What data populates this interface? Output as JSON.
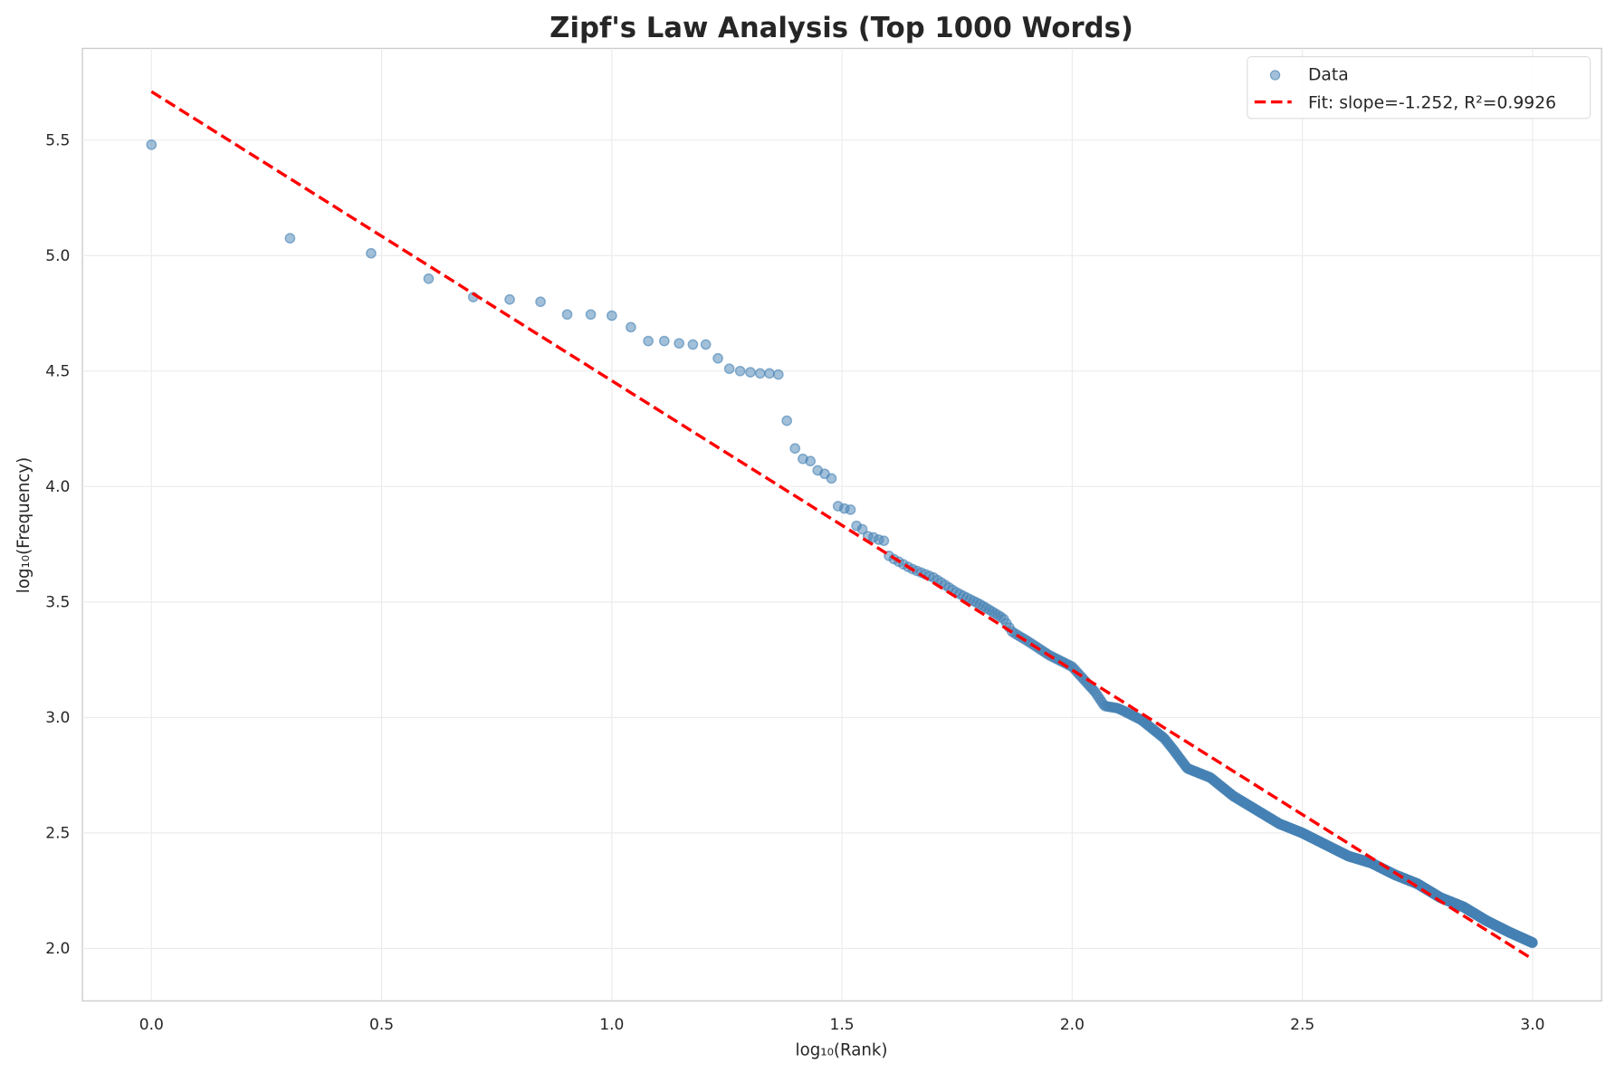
{
  "chart_data": {
    "type": "scatter",
    "title": "Zipf's Law Analysis (Top 1000 Words)",
    "xlabel": "log₁₀(Rank)",
    "ylabel": "log₁₀(Frequency)",
    "xlim": [
      -0.15,
      3.15
    ],
    "ylim": [
      1.773,
      5.897
    ],
    "xticks": [
      "0.0",
      "0.5",
      "1.0",
      "1.5",
      "2.0",
      "2.5",
      "3.0"
    ],
    "yticks": [
      "2.0",
      "2.5",
      "3.0",
      "3.5",
      "4.0",
      "4.5",
      "5.0",
      "5.5"
    ],
    "grid": true,
    "legend_position": "top-right",
    "colors": {
      "data": "#4682b4",
      "fit": "#ff0000"
    },
    "series": [
      {
        "name": "Data",
        "kind": "scatter",
        "rank_points": [
          [
            1,
            5.48
          ],
          [
            2,
            5.075
          ],
          [
            3,
            5.01
          ],
          [
            4,
            4.9
          ],
          [
            5,
            4.82
          ],
          [
            6,
            4.81
          ],
          [
            7,
            4.8
          ],
          [
            8,
            4.745
          ],
          [
            9,
            4.745
          ],
          [
            10,
            4.74
          ],
          [
            11,
            4.69
          ],
          [
            12,
            4.63
          ],
          [
            13,
            4.63
          ],
          [
            14,
            4.62
          ],
          [
            15,
            4.615
          ],
          [
            16,
            4.615
          ],
          [
            17,
            4.555
          ],
          [
            18,
            4.51
          ],
          [
            19,
            4.5
          ],
          [
            20,
            4.495
          ],
          [
            21,
            4.49
          ],
          [
            22,
            4.49
          ],
          [
            23,
            4.485
          ],
          [
            24,
            4.285
          ],
          [
            25,
            4.165
          ],
          [
            26,
            4.12
          ],
          [
            27,
            4.11
          ],
          [
            28,
            4.07
          ],
          [
            29,
            4.055
          ],
          [
            30,
            4.035
          ],
          [
            31,
            3.915
          ],
          [
            32,
            3.905
          ],
          [
            33,
            3.9
          ],
          [
            34,
            3.83
          ],
          [
            35,
            3.815
          ],
          [
            36,
            3.785
          ],
          [
            37,
            3.78
          ],
          [
            38,
            3.77
          ],
          [
            39,
            3.765
          ],
          [
            40,
            3.7
          ]
        ],
        "curve_log_points": [
          [
            1.6,
            3.7
          ],
          [
            1.65,
            3.645
          ],
          [
            1.7,
            3.605
          ],
          [
            1.75,
            3.54
          ],
          [
            1.8,
            3.49
          ],
          [
            1.85,
            3.43
          ],
          [
            1.87,
            3.37
          ],
          [
            1.9,
            3.335
          ],
          [
            1.95,
            3.27
          ],
          [
            2.0,
            3.22
          ],
          [
            2.05,
            3.11
          ],
          [
            2.07,
            3.05
          ],
          [
            2.1,
            3.04
          ],
          [
            2.15,
            2.99
          ],
          [
            2.2,
            2.91
          ],
          [
            2.22,
            2.86
          ],
          [
            2.25,
            2.78
          ],
          [
            2.3,
            2.74
          ],
          [
            2.35,
            2.66
          ],
          [
            2.4,
            2.6
          ],
          [
            2.45,
            2.54
          ],
          [
            2.5,
            2.5
          ],
          [
            2.55,
            2.45
          ],
          [
            2.6,
            2.4
          ],
          [
            2.65,
            2.37
          ],
          [
            2.7,
            2.32
          ],
          [
            2.75,
            2.28
          ],
          [
            2.8,
            2.22
          ],
          [
            2.85,
            2.18
          ],
          [
            2.9,
            2.12
          ],
          [
            2.95,
            2.07
          ],
          [
            3.0,
            2.025
          ]
        ],
        "max_rank": 1000
      },
      {
        "name": "Fit: slope=-1.252, R²=0.9926",
        "kind": "line",
        "slope": -1.252,
        "intercept": 5.71,
        "x_range": [
          0,
          3
        ]
      }
    ]
  }
}
